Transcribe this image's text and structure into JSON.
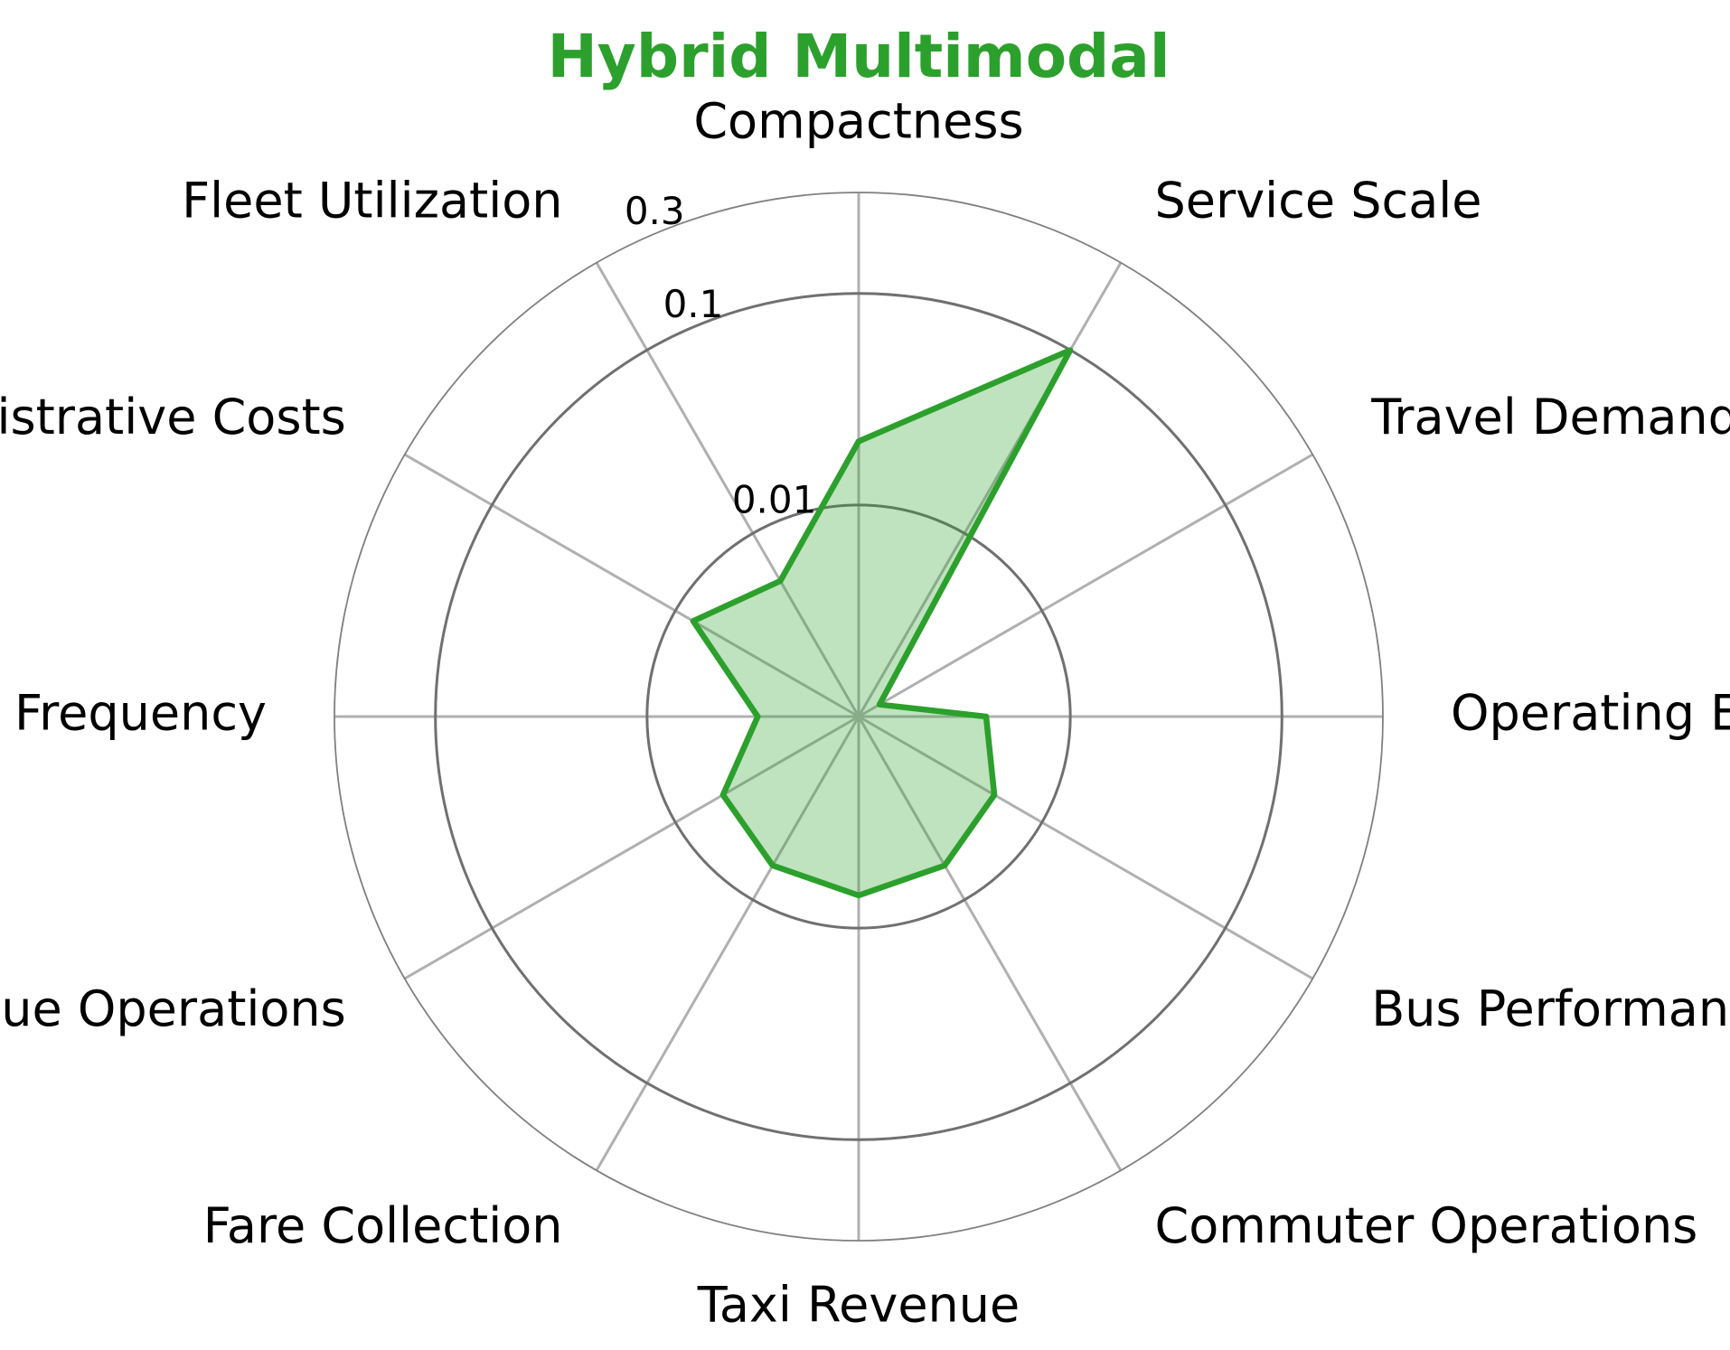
{
  "chart_data": {
    "type": "radar",
    "title": "Hybrid Multimodal",
    "title_color": "#2ca02c",
    "series_color": "#2ca02c",
    "fill_color": "#2ca02c",
    "radial_scale": "log",
    "radial_ticks": [
      {
        "value": 0.01,
        "label": "0.01"
      },
      {
        "value": 0.1,
        "label": "0.1"
      },
      {
        "value": 0.3,
        "label": "0.3"
      }
    ],
    "rlim": [
      0.001,
      0.3
    ],
    "categories": [
      "Compactness",
      "Service Scale",
      "Travel Demand",
      "Operating Expenses",
      "Bus Performance",
      "Commuter Operations",
      "Taxi Revenue",
      "Fare Collection",
      "Revenue Operations",
      "Service Frequency",
      "Administrative Costs",
      "Fleet Utilization"
    ],
    "series": [
      {
        "values": [
          0.02,
          0.1,
          0.0013,
          0.004,
          0.0055,
          0.0065,
          0.007,
          0.0065,
          0.0055,
          0.003,
          0.008,
          0.0055
        ]
      }
    ]
  }
}
